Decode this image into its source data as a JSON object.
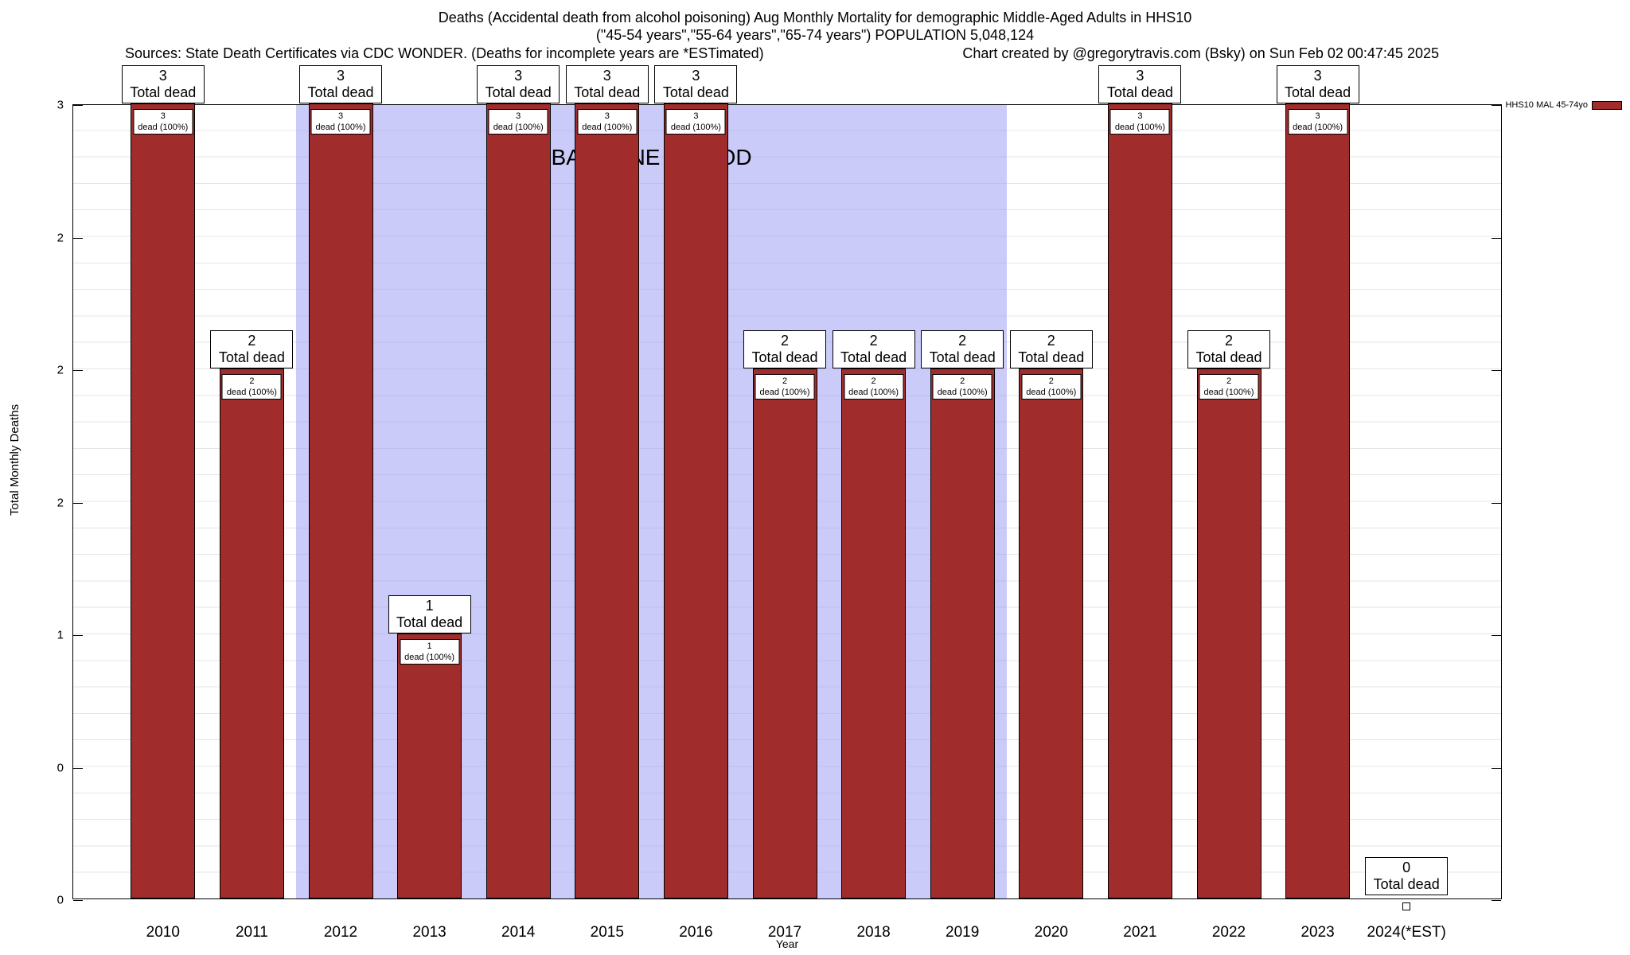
{
  "header": {
    "title_line1": "Deaths (Accidental death from alcohol poisoning) Aug Monthly Mortality for demographic Middle-Aged Adults in HHS10",
    "title_line2": "(\"45-54 years\",\"55-64 years\",\"65-74 years\") POPULATION 5,048,124",
    "sources": "Sources: State Death Certificates via CDC WONDER. (Deaths for incomplete years are *ESTimated)",
    "credit": "Chart created by @gregorytravis.com (Bsky) on Sun Feb 02 00:47:45 2025"
  },
  "legend": {
    "label": "HHS10 MAL 45-74yo",
    "swatch_color": "#a12c2c",
    "position": "top-right"
  },
  "axes": {
    "ylabel": "Total Monthly Deaths",
    "xlabel": "Year",
    "yticks": [
      {
        "value": 3,
        "label": "3"
      },
      {
        "value": 2.5,
        "label": "2"
      },
      {
        "value": 2,
        "label": "2"
      },
      {
        "value": 1.5,
        "label": "2"
      },
      {
        "value": 1,
        "label": "1"
      },
      {
        "value": 0.5,
        "label": "0"
      },
      {
        "value": 0,
        "label": "0"
      }
    ]
  },
  "annotations": {
    "baseline_label": "BASELINE PERIOD",
    "baseline_start_year": "2012",
    "baseline_end_year": "2019",
    "baseline_color": "#cbcbfa"
  },
  "chart_data": {
    "type": "bar",
    "title": "Deaths (Accidental death from alcohol poisoning) Aug Monthly Mortality for demographic Middle-Aged Adults in HHS10",
    "subtitle": "(\"45-54 years\",\"55-64 years\",\"65-74 years\") POPULATION 5,048,124",
    "categories": [
      "2010",
      "2011",
      "2012",
      "2013",
      "2014",
      "2015",
      "2016",
      "2017",
      "2018",
      "2019",
      "2020",
      "2021",
      "2022",
      "2023",
      "2024(*EST)"
    ],
    "values": [
      3,
      2,
      3,
      1,
      3,
      3,
      3,
      2,
      2,
      2,
      2,
      3,
      2,
      3,
      0
    ],
    "series": [
      {
        "name": "HHS10 MAL 45-74yo",
        "values": [
          3,
          2,
          3,
          1,
          3,
          3,
          3,
          2,
          2,
          2,
          2,
          3,
          2,
          3,
          0
        ]
      }
    ],
    "bar_color": "#a12c2c",
    "ylim": [
      0,
      3
    ],
    "ylabel": "Total Monthly Deaths",
    "xlabel": "Year",
    "grid": "minor horizontal lines, step 0.1",
    "legend_position": "top-right",
    "top_label_template": "Total dead",
    "inner_label_template": "dead (100%)",
    "baseline_period_years": [
      "2012",
      "2013",
      "2014",
      "2015",
      "2016",
      "2017",
      "2018",
      "2019"
    ]
  }
}
